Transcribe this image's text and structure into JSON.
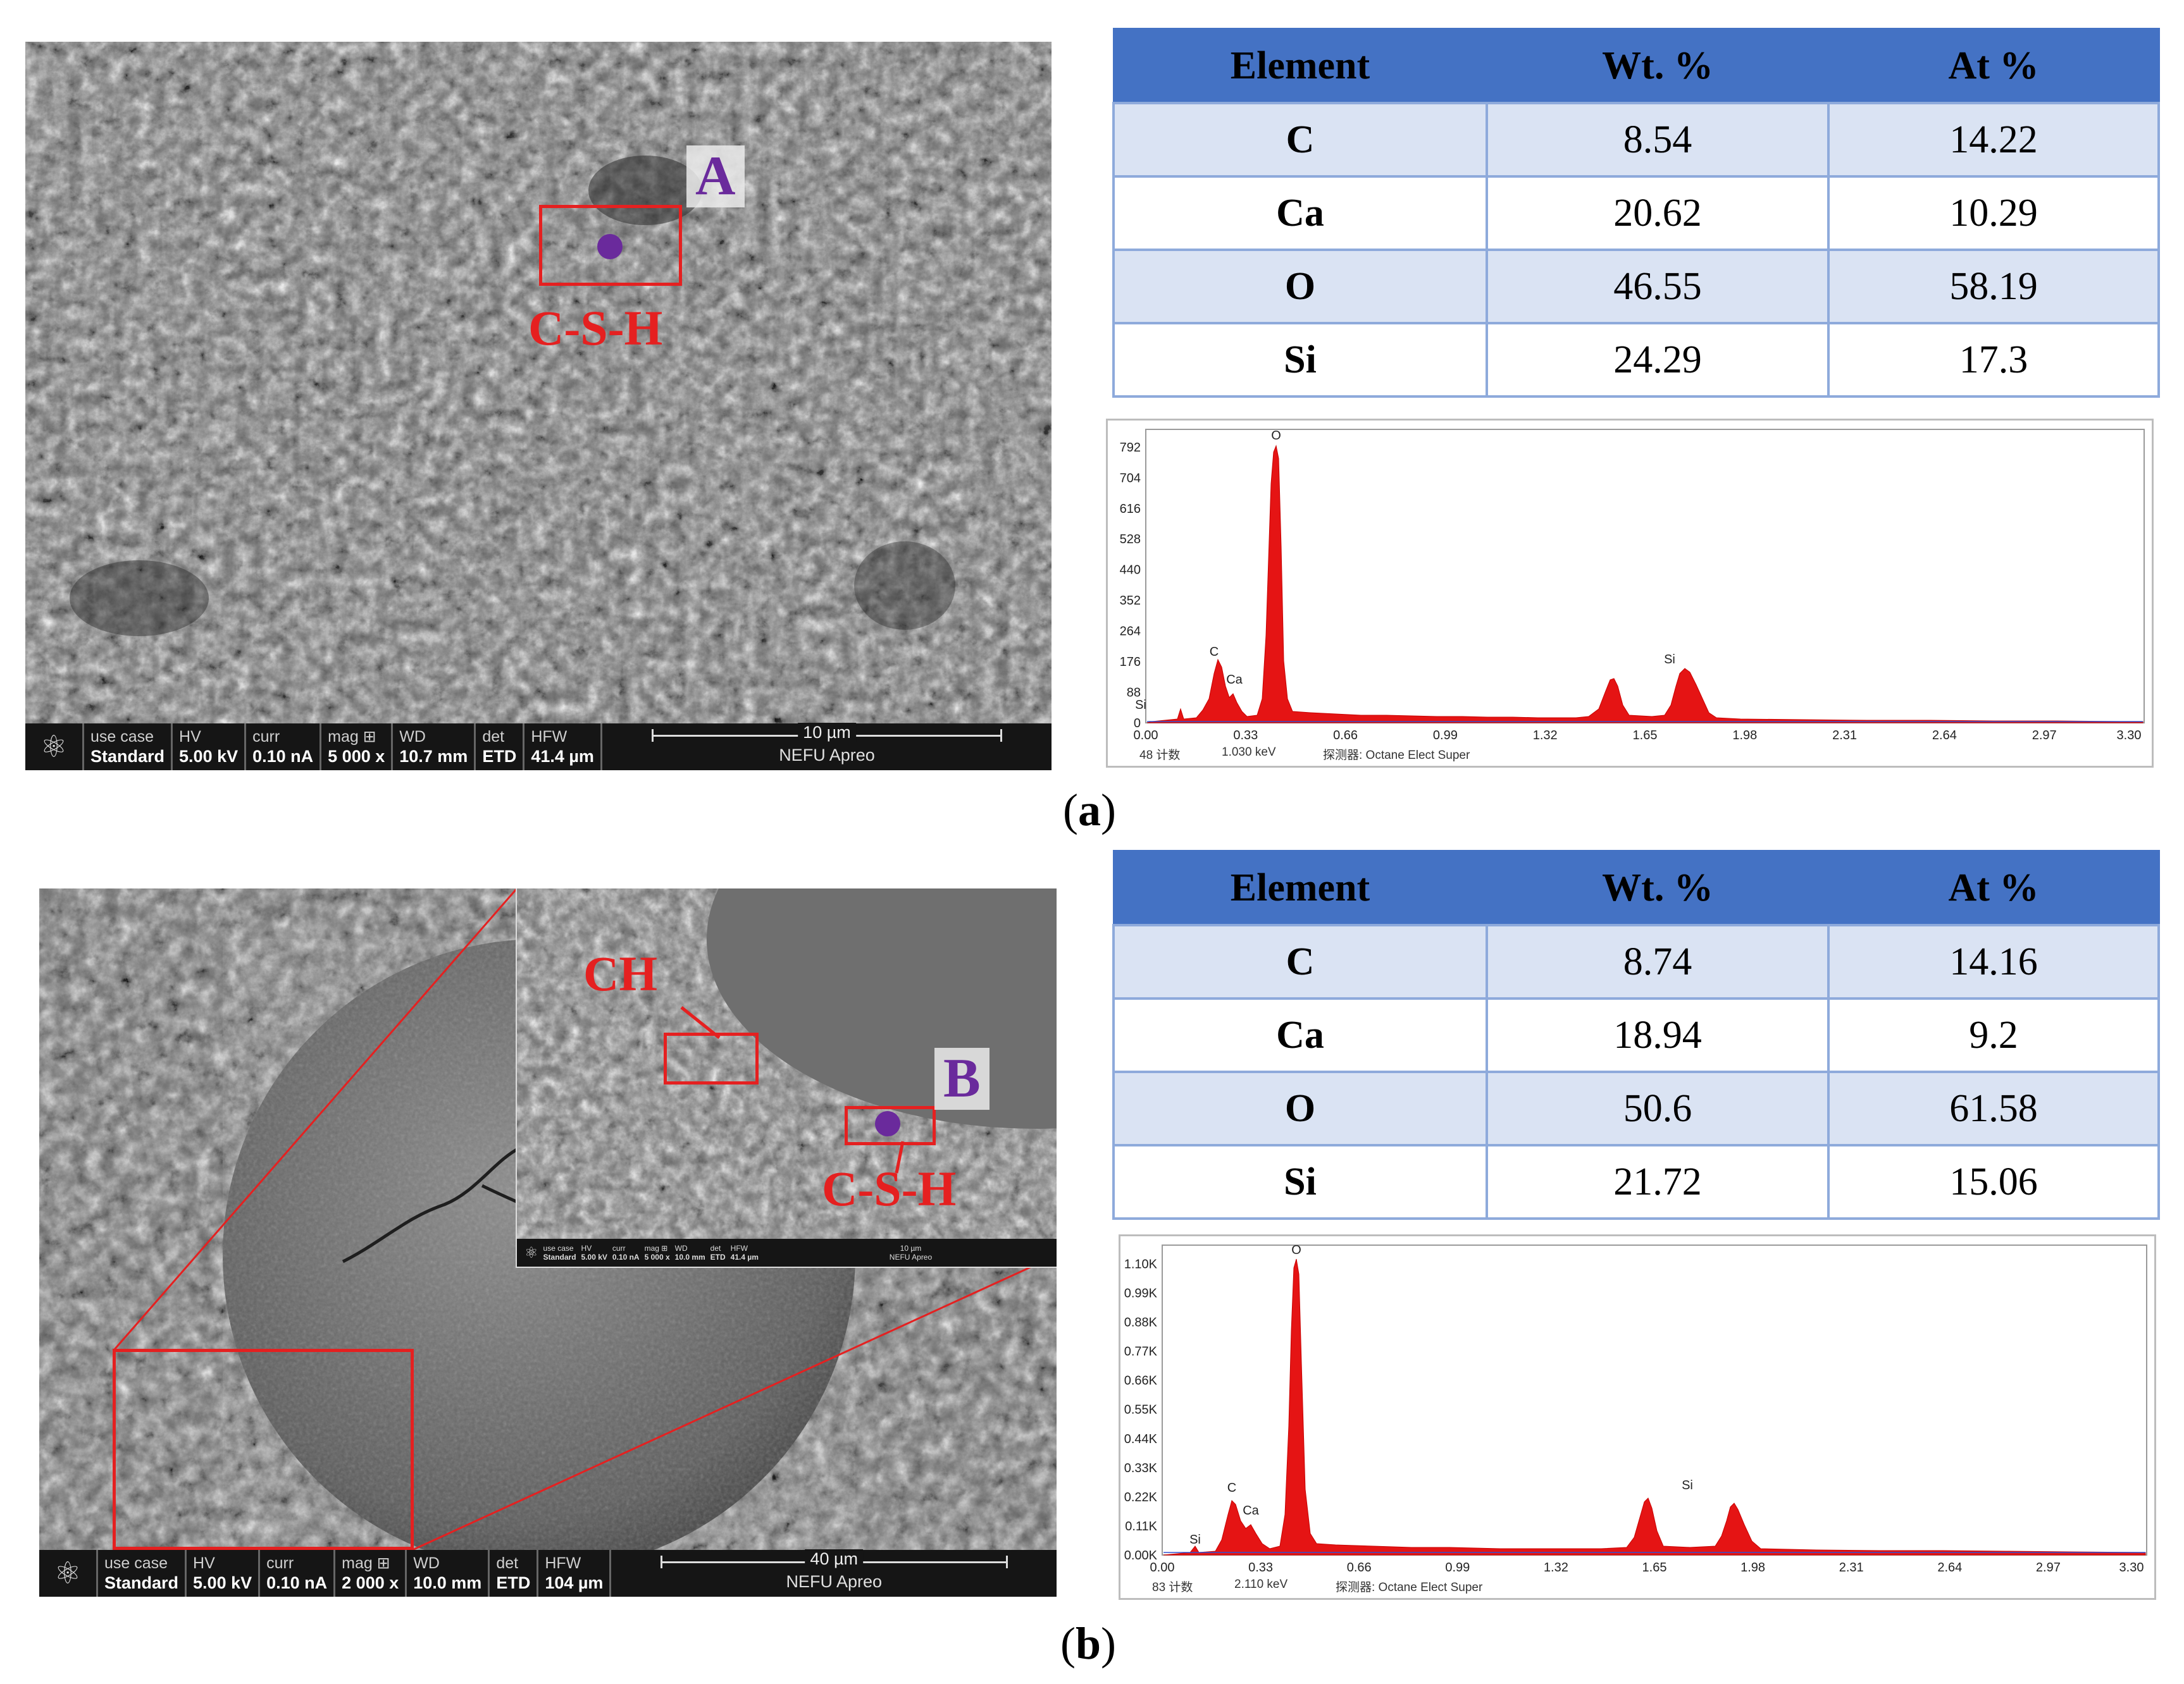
{
  "panels": [
    {
      "caption_letter": "a",
      "sem": {
        "databar": {
          "cells": [
            {
              "label": "use case",
              "value": "Standard"
            },
            {
              "label": "HV",
              "value": "5.00 kV"
            },
            {
              "label": "curr",
              "value": "0.10 nA"
            },
            {
              "label": "mag ⊞",
              "value": "5 000 x"
            },
            {
              "label": "WD",
              "value": "10.7 mm"
            },
            {
              "label": "det",
              "value": "ETD"
            },
            {
              "label": "HFW",
              "value": "41.4 µm"
            }
          ],
          "scale": "10 µm",
          "instrument": "NEFU Apreo"
        },
        "point_label": "A",
        "phase_label": "C-S-H",
        "marker_color": "#6a2a9c",
        "annotation_color": "#e52020"
      },
      "table": {
        "headers": [
          "Element",
          "Wt. %",
          "At %"
        ],
        "rows": [
          [
            "C",
            "8.54",
            "14.22"
          ],
          [
            "Ca",
            "20.62",
            "10.29"
          ],
          [
            "O",
            "46.55",
            "58.19"
          ],
          [
            "Si",
            "24.29",
            "17.3"
          ]
        ]
      },
      "spectrum": {
        "y_ticks": [
          "0",
          "88",
          "176",
          "264",
          "352",
          "440",
          "528",
          "616",
          "704",
          "792"
        ],
        "x_ticks": [
          "0.00",
          "0.33",
          "0.66",
          "0.99",
          "1.32",
          "1.65",
          "1.98",
          "2.31",
          "2.64",
          "2.97",
          "3.30"
        ],
        "peaks": [
          "C",
          "Ca",
          "O",
          "Si",
          "Si"
        ],
        "footer": {
          "counts": "48 计数",
          "energy": "1.030 keV",
          "detector": "探测器: Octane Elect Super"
        }
      }
    },
    {
      "caption_letter": "b",
      "sem": {
        "databar": {
          "cells": [
            {
              "label": "use case",
              "value": "Standard"
            },
            {
              "label": "HV",
              "value": "5.00 kV"
            },
            {
              "label": "curr",
              "value": "0.10 nA"
            },
            {
              "label": "mag ⊞",
              "value": "2 000 x"
            },
            {
              "label": "WD",
              "value": "10.0 mm"
            },
            {
              "label": "det",
              "value": "ETD"
            },
            {
              "label": "HFW",
              "value": "104 µm"
            }
          ],
          "scale": "40 µm",
          "instrument": "NEFU Apreo"
        },
        "inset_databar": {
          "cells": [
            {
              "label": "use case",
              "value": "Standard"
            },
            {
              "label": "HV",
              "value": "5.00 kV"
            },
            {
              "label": "curr",
              "value": "0.10 nA"
            },
            {
              "label": "mag ⊞",
              "value": "5 000 x"
            },
            {
              "label": "WD",
              "value": "10.0 mm"
            },
            {
              "label": "det",
              "value": "ETD"
            },
            {
              "label": "HFW",
              "value": "41.4 µm"
            }
          ],
          "scale": "10 µm",
          "instrument": "NEFU Apreo"
        },
        "point_label": "B",
        "phase_labels": [
          "CH",
          "C-S-H"
        ],
        "marker_color": "#6a2a9c",
        "annotation_color": "#e52020"
      },
      "table": {
        "headers": [
          "Element",
          "Wt. %",
          "At %"
        ],
        "rows": [
          [
            "C",
            "8.74",
            "14.16"
          ],
          [
            "Ca",
            "18.94",
            "9.2"
          ],
          [
            "O",
            "50.6",
            "61.58"
          ],
          [
            "Si",
            "21.72",
            "15.06"
          ]
        ]
      },
      "spectrum": {
        "y_ticks": [
          "0.00K",
          "0.11K",
          "0.22K",
          "0.33K",
          "0.44K",
          "0.55K",
          "0.66K",
          "0.77K",
          "0.88K",
          "0.99K",
          "1.10K"
        ],
        "x_ticks": [
          "0.00",
          "0.33",
          "0.66",
          "0.99",
          "1.32",
          "1.65",
          "1.98",
          "2.31",
          "2.64",
          "2.97",
          "3.30"
        ],
        "peaks": [
          "C",
          "Ca",
          "O",
          "Si",
          "Si"
        ],
        "footer": {
          "counts": "83 计数",
          "energy": "2.110 keV",
          "detector": "探测器: Octane Elect Super"
        }
      }
    }
  ]
}
